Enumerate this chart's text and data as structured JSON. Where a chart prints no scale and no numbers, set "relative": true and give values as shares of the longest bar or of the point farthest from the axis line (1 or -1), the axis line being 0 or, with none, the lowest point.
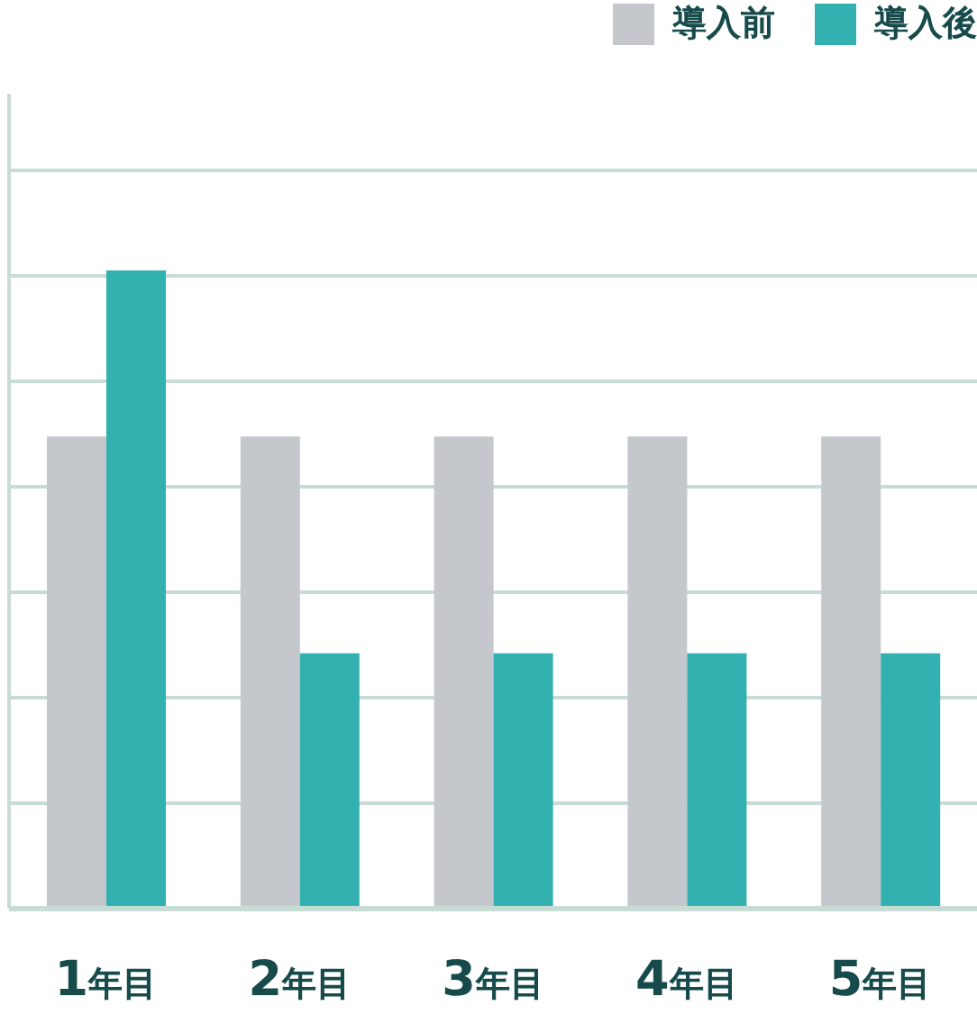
{
  "chart_data": {
    "type": "bar",
    "relative": true,
    "categories": [
      "1年目",
      "2年目",
      "3年目",
      "4年目",
      "5年目"
    ],
    "series": [
      {
        "name": "導入前",
        "color": "#c4c8cc",
        "values": [
          0.74,
          0.74,
          0.74,
          0.74,
          0.74
        ]
      },
      {
        "name": "導入後",
        "color": "#33b0b0",
        "values": [
          1,
          0.4,
          0.4,
          0.4,
          0.4
        ]
      }
    ],
    "grid": "y",
    "legend": "top right"
  }
}
